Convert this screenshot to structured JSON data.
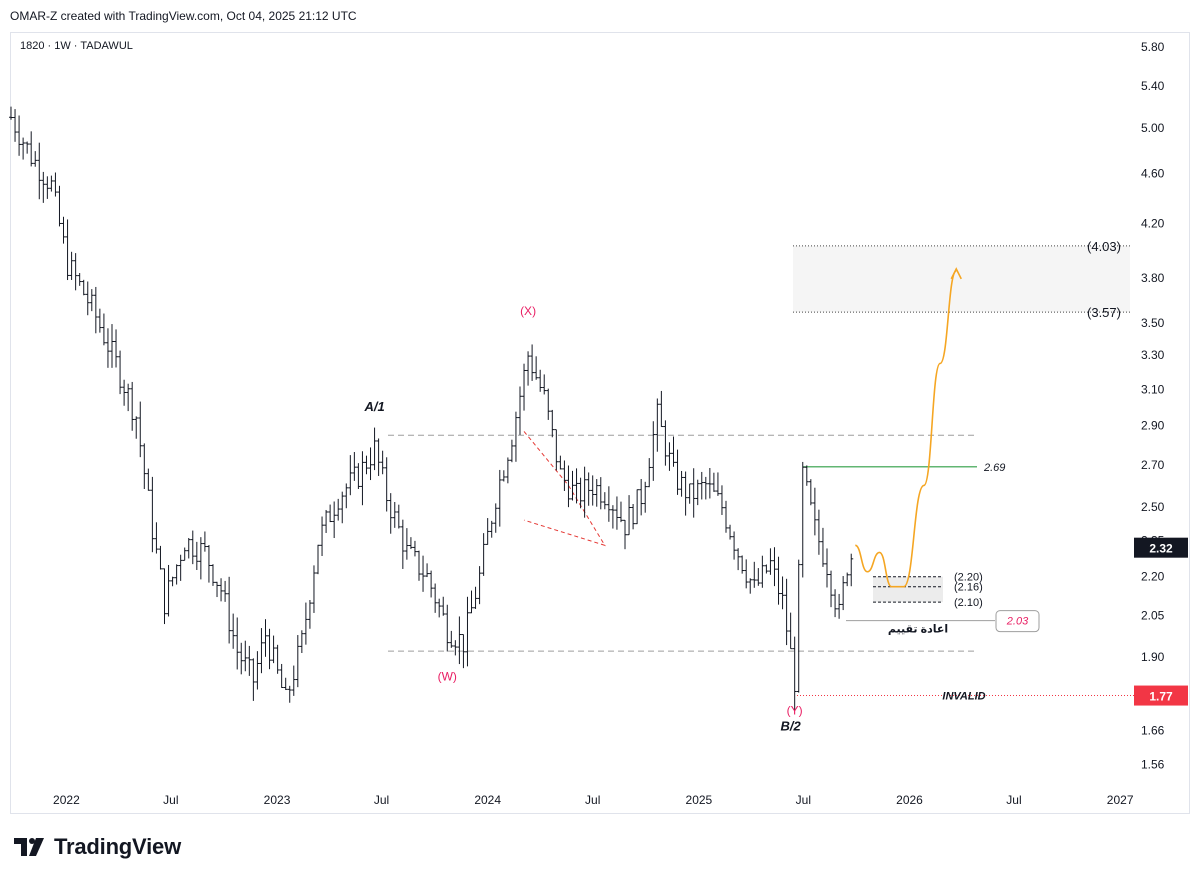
{
  "header": {
    "credit": "OMAR-Z created with TradingView.com, Oct 04, 2025 21:12 UTC",
    "symbol": "1820 · 1W · TADAWUL"
  },
  "footer": {
    "brand": "TradingView"
  },
  "colors": {
    "bars": "#131722",
    "red_label": "#e91e63",
    "green_line": "#2e9e44",
    "forecast": "#f5a623",
    "invalid_badge": "#f23645",
    "price_badge": "#131722"
  },
  "chart_data": {
    "type": "bar",
    "symbol": "1820",
    "interval": "1W",
    "exchange": "TADAWUL",
    "y_scale": "log",
    "ylim": [
      1.5,
      5.95
    ],
    "xlim": [
      "2021-09-27",
      "2027-01-25"
    ],
    "y_ticks": [
      "5.80",
      "5.40",
      "5.00",
      "4.60",
      "4.20",
      "3.80",
      "3.50",
      "3.30",
      "3.10",
      "2.90",
      "2.70",
      "2.50",
      "2.35",
      "2.20",
      "2.05",
      "1.90",
      "1.66",
      "1.56"
    ],
    "x_ticks": [
      {
        "date": "2022-01-01",
        "label": "2022"
      },
      {
        "date": "2022-07-01",
        "label": "Jul"
      },
      {
        "date": "2023-01-01",
        "label": "2023"
      },
      {
        "date": "2023-07-01",
        "label": "Jul"
      },
      {
        "date": "2024-01-01",
        "label": "2024"
      },
      {
        "date": "2024-07-01",
        "label": "Jul"
      },
      {
        "date": "2025-01-01",
        "label": "2025"
      },
      {
        "date": "2025-07-01",
        "label": "Jul"
      },
      {
        "date": "2026-01-01",
        "label": "2026"
      },
      {
        "date": "2026-07-01",
        "label": "Jul"
      },
      {
        "date": "2027-01-01",
        "label": "2027"
      }
    ],
    "price_path": [
      [
        "2021-09-27",
        5.1
      ],
      [
        "2021-11-01",
        4.75
      ],
      [
        "2021-12-06",
        4.5
      ],
      [
        "2022-01-03",
        3.9
      ],
      [
        "2022-02-14",
        3.6
      ],
      [
        "2022-03-28",
        3.25
      ],
      [
        "2022-05-02",
        2.95
      ],
      [
        "2022-05-30",
        2.4
      ],
      [
        "2022-06-20",
        2.1
      ],
      [
        "2022-07-25",
        2.35
      ],
      [
        "2022-08-29",
        2.3
      ],
      [
        "2022-09-26",
        2.15
      ],
      [
        "2022-10-24",
        1.92
      ],
      [
        "2022-11-21",
        1.82
      ],
      [
        "2022-12-12",
        1.98
      ],
      [
        "2023-01-16",
        1.75
      ],
      [
        "2023-02-13",
        1.95
      ],
      [
        "2023-03-13",
        2.35
      ],
      [
        "2023-04-17",
        2.55
      ],
      [
        "2023-05-22",
        2.65
      ],
      [
        "2023-06-19",
        2.78
      ],
      [
        "2023-07-10",
        2.55
      ],
      [
        "2023-08-14",
        2.3
      ],
      [
        "2023-09-18",
        2.2
      ],
      [
        "2023-10-23",
        2.0
      ],
      [
        "2023-11-20",
        1.95
      ],
      [
        "2023-12-18",
        2.2
      ],
      [
        "2024-01-15",
        2.55
      ],
      [
        "2024-02-12",
        2.85
      ],
      [
        "2024-03-11",
        3.3
      ],
      [
        "2024-04-08",
        3.05
      ],
      [
        "2024-05-06",
        2.65
      ],
      [
        "2024-06-03",
        2.55
      ],
      [
        "2024-07-01",
        2.6
      ],
      [
        "2024-07-29",
        2.55
      ],
      [
        "2024-08-26",
        2.42
      ],
      [
        "2024-09-23",
        2.55
      ],
      [
        "2024-10-21",
        2.95
      ],
      [
        "2024-11-18",
        2.65
      ],
      [
        "2024-12-16",
        2.55
      ],
      [
        "2025-01-13",
        2.6
      ],
      [
        "2025-02-10",
        2.5
      ],
      [
        "2025-03-10",
        2.3
      ],
      [
        "2025-04-07",
        2.15
      ],
      [
        "2025-05-05",
        2.25
      ],
      [
        "2025-05-26",
        2.1
      ],
      [
        "2025-06-16",
        1.82
      ],
      [
        "2025-06-30",
        2.65
      ],
      [
        "2025-07-21",
        2.4
      ],
      [
        "2025-08-11",
        2.25
      ],
      [
        "2025-09-01",
        2.05
      ],
      [
        "2025-09-15",
        2.25
      ],
      [
        "2025-09-29",
        2.32
      ]
    ],
    "last_price": "2.32",
    "levels": [
      {
        "name": "top-box-high",
        "value": 4.03,
        "label": "(4.03)"
      },
      {
        "name": "top-box-low",
        "value": 3.57,
        "label": "(3.57)"
      },
      {
        "name": "resistance",
        "value": 2.85
      },
      {
        "name": "swing-high",
        "value": 2.69,
        "label": "2.69"
      },
      {
        "name": "support-box-high",
        "value": 2.2,
        "label": "(2.20)"
      },
      {
        "name": "support-box-mid",
        "value": 2.16,
        "label": "(2.16)"
      },
      {
        "name": "support-box-low",
        "value": 2.1,
        "label": "(2.10)"
      },
      {
        "name": "retest",
        "value": 2.03,
        "label": "2.03",
        "note": "اعادة تقييم"
      },
      {
        "name": "support",
        "value": 1.92
      },
      {
        "name": "invalid",
        "value": 1.77,
        "label": "1.77",
        "note": "INVALID"
      }
    ],
    "wave_labels": [
      {
        "text": "A/1",
        "date": "2023-06-19",
        "price": 2.98
      },
      {
        "text": "(X)",
        "date": "2024-03-11",
        "price": 3.55
      },
      {
        "text": "(W)",
        "date": "2023-10-23",
        "price": 1.82
      },
      {
        "text": "(Y)",
        "date": "2025-06-16",
        "price": 1.71
      },
      {
        "text": "B/2",
        "date": "2025-06-09",
        "price": 1.66
      }
    ],
    "forecast_path": [
      [
        "2025-09-29",
        2.33
      ],
      [
        "2025-10-20",
        2.22
      ],
      [
        "2025-11-10",
        2.3
      ],
      [
        "2025-12-01",
        2.16
      ],
      [
        "2025-12-22",
        2.16
      ],
      [
        "2026-01-26",
        2.6
      ],
      [
        "2026-02-23",
        3.25
      ],
      [
        "2026-03-23",
        3.85
      ]
    ]
  }
}
